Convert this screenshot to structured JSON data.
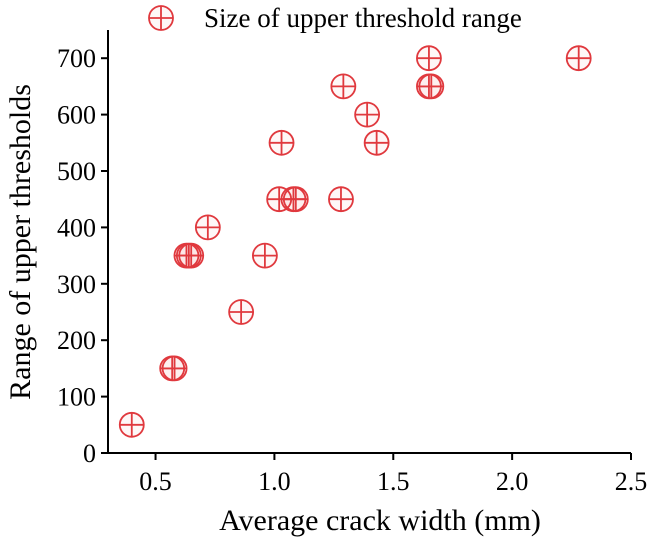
{
  "chart_data": {
    "type": "scatter",
    "xlabel": "Average crack width (mm)",
    "ylabel": "Range of upper thresholds",
    "xlim": [
      0.3,
      2.5
    ],
    "ylim": [
      0,
      750
    ],
    "xticks": [
      "0.5",
      "1.0",
      "1.5",
      "2.0",
      "2.5"
    ],
    "yticks": [
      "0",
      "100",
      "200",
      "300",
      "400",
      "500",
      "600",
      "700"
    ],
    "legend_position": "top",
    "marker_color": "#e0393e",
    "series": [
      {
        "name": "Size of upper threshold range",
        "points": [
          {
            "x": 0.4,
            "y": 50
          },
          {
            "x": 0.57,
            "y": 150
          },
          {
            "x": 0.58,
            "y": 150
          },
          {
            "x": 0.63,
            "y": 350
          },
          {
            "x": 0.64,
            "y": 350
          },
          {
            "x": 0.65,
            "y": 350
          },
          {
            "x": 0.72,
            "y": 400
          },
          {
            "x": 0.86,
            "y": 250
          },
          {
            "x": 0.96,
            "y": 350
          },
          {
            "x": 1.02,
            "y": 450
          },
          {
            "x": 1.03,
            "y": 550
          },
          {
            "x": 1.08,
            "y": 450
          },
          {
            "x": 1.09,
            "y": 450
          },
          {
            "x": 1.28,
            "y": 450
          },
          {
            "x": 1.29,
            "y": 650
          },
          {
            "x": 1.39,
            "y": 600
          },
          {
            "x": 1.43,
            "y": 550
          },
          {
            "x": 1.65,
            "y": 700
          },
          {
            "x": 1.65,
            "y": 650
          },
          {
            "x": 1.66,
            "y": 650
          },
          {
            "x": 2.28,
            "y": 700
          }
        ]
      }
    ]
  }
}
